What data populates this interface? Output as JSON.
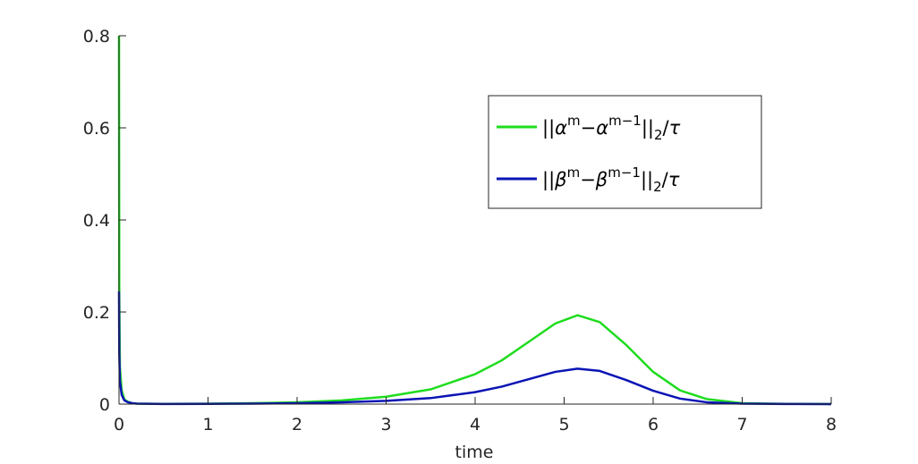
{
  "chart_data": {
    "type": "line",
    "xlabel": "time",
    "ylabel": "",
    "title": "",
    "xlim": [
      0,
      8
    ],
    "ylim": [
      0,
      0.8
    ],
    "xticks": [
      0,
      1,
      2,
      3,
      4,
      5,
      6,
      7,
      8
    ],
    "yticks": [
      0,
      0.2,
      0.4,
      0.6,
      0.8
    ],
    "xtick_labels": [
      "0",
      "1",
      "2",
      "3",
      "4",
      "5",
      "6",
      "7",
      "8"
    ],
    "ytick_labels": [
      "0",
      "0.2",
      "0.4",
      "0.6",
      "0.8"
    ],
    "grid": false,
    "legend_position": "top-right",
    "series": [
      {
        "name": "||α^m−α^(m−1)||_2/τ",
        "color": "#1fdc1f",
        "x": [
          0,
          0.003,
          0.01,
          0.03,
          0.06,
          0.1,
          0.15,
          0.2,
          0.5,
          1.0,
          1.5,
          2.0,
          2.5,
          3.0,
          3.5,
          4.0,
          4.3,
          4.6,
          4.9,
          5.15,
          5.4,
          5.7,
          6.0,
          6.3,
          6.6,
          7.0,
          7.5,
          8.0
        ],
        "values": [
          0.8,
          0.24,
          0.08,
          0.03,
          0.01,
          0.005,
          0.002,
          0.001,
          0.0005,
          0.001,
          0.002,
          0.004,
          0.008,
          0.016,
          0.032,
          0.065,
          0.095,
          0.135,
          0.175,
          0.193,
          0.178,
          0.128,
          0.07,
          0.03,
          0.011,
          0.002,
          0.0005,
          0.0002
        ]
      },
      {
        "name": "||β^m−β^(m−1)||_2/τ",
        "color": "#0a14b4",
        "x": [
          0,
          0.003,
          0.01,
          0.03,
          0.06,
          0.1,
          0.15,
          0.2,
          0.5,
          1.0,
          1.5,
          2.0,
          2.5,
          3.0,
          3.5,
          4.0,
          4.3,
          4.6,
          4.9,
          5.15,
          5.4,
          5.7,
          6.0,
          6.3,
          6.6,
          7.0,
          7.5,
          8.0
        ],
        "values": [
          0.245,
          0.11,
          0.05,
          0.02,
          0.008,
          0.004,
          0.002,
          0.001,
          0.0003,
          0.0005,
          0.001,
          0.002,
          0.004,
          0.007,
          0.013,
          0.026,
          0.038,
          0.054,
          0.07,
          0.077,
          0.072,
          0.052,
          0.029,
          0.012,
          0.004,
          0.001,
          0.0003,
          0.0001
        ]
      }
    ]
  }
}
